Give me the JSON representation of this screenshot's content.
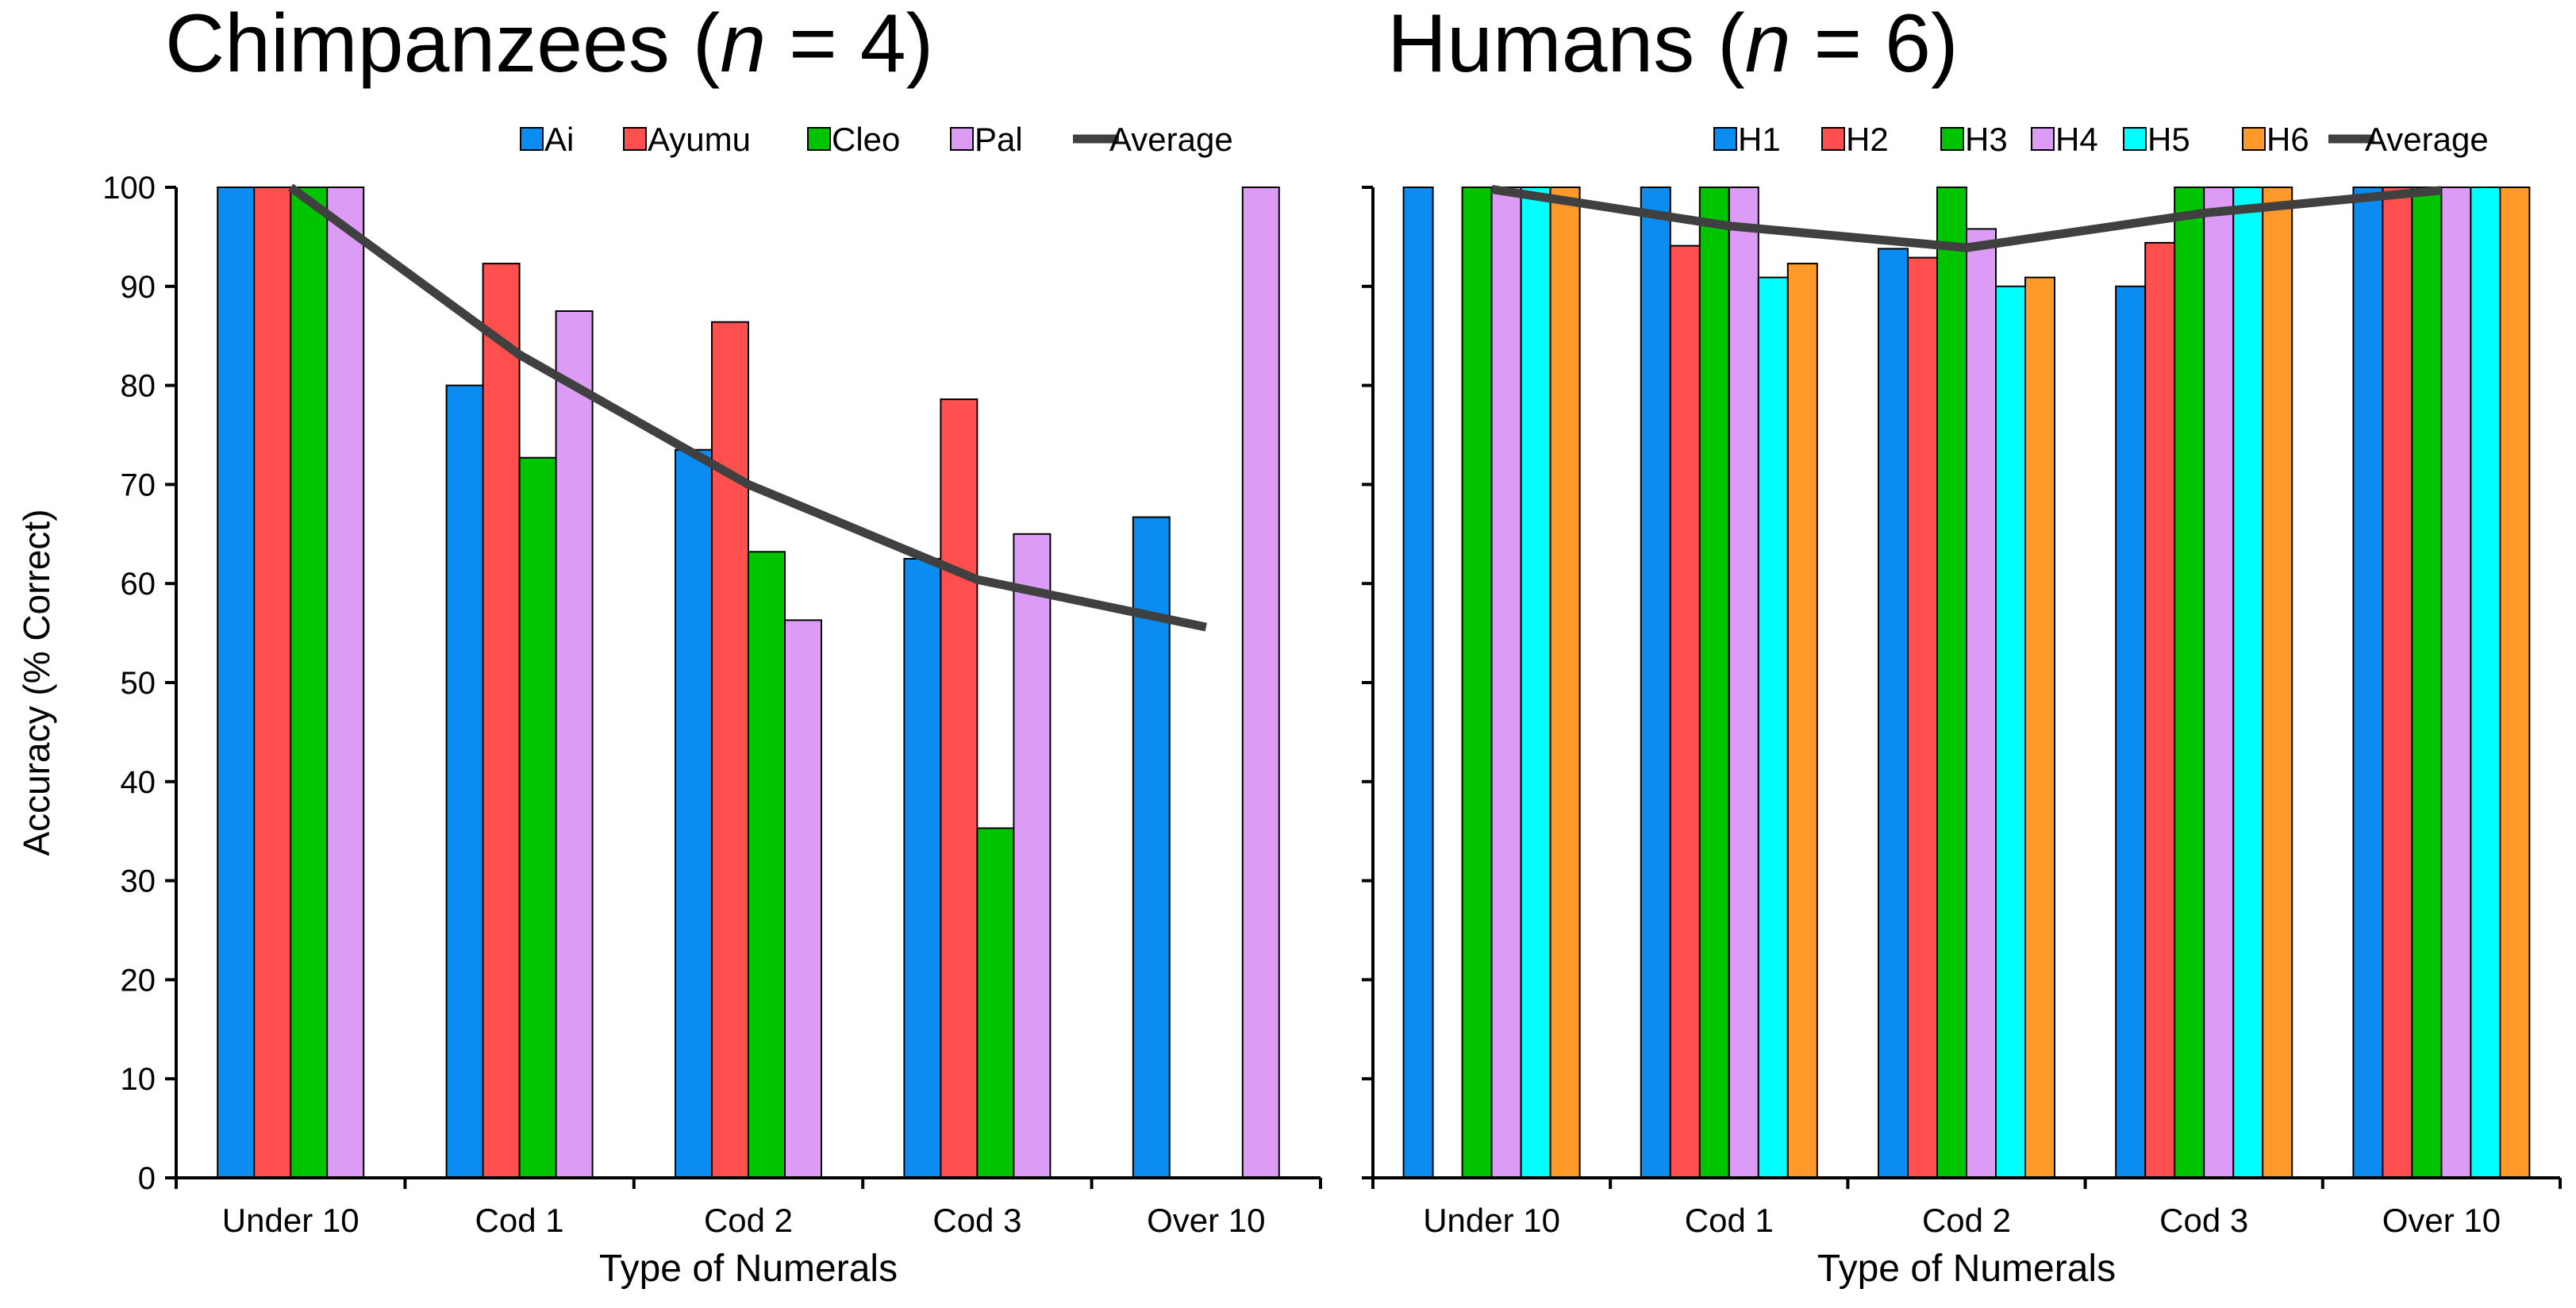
{
  "chart_data": [
    {
      "type": "bar",
      "title": "Chimpanzees (n = 4)",
      "title_parts": [
        "Chimpanzees (",
        "n",
        " = 4)"
      ],
      "xlabel": "Type of Numerals",
      "ylabel": "Accuracy (% Correct)",
      "ylim": [
        0,
        100
      ],
      "yticks": [
        0,
        10,
        20,
        30,
        40,
        50,
        60,
        70,
        80,
        90,
        100
      ],
      "categories": [
        "Under 10",
        "Cod 1",
        "Cod 2",
        "Cod 3",
        "Over 10"
      ],
      "series": [
        {
          "name": "Ai",
          "color": "#0a8cf0",
          "values": [
            100,
            80,
            73.5,
            62.5,
            66.7
          ]
        },
        {
          "name": "Ayumu",
          "color": "#ff4f4f",
          "values": [
            100,
            92.3,
            86.4,
            78.6,
            null
          ]
        },
        {
          "name": "Cleo",
          "color": "#00c400",
          "values": [
            100,
            72.7,
            63.2,
            35.3,
            null
          ]
        },
        {
          "name": "Pal",
          "color": "#dc9bf5",
          "values": [
            100,
            87.5,
            56.3,
            65,
            100
          ]
        }
      ],
      "average": {
        "name": "Average",
        "color": "#404040",
        "values": [
          100,
          83.1,
          70,
          60.4,
          55.6
        ]
      },
      "legend_position": "top"
    },
    {
      "type": "bar",
      "title": "Humans (n = 6)",
      "title_parts": [
        "Humans (",
        "n",
        " = 6)"
      ],
      "xlabel": "Type of Numerals",
      "ylabel": "",
      "ylim": [
        0,
        100
      ],
      "yticks": [
        0,
        10,
        20,
        30,
        40,
        50,
        60,
        70,
        80,
        90,
        100
      ],
      "categories": [
        "Under 10",
        "Cod 1",
        "Cod 2",
        "Cod 3",
        "Over 10"
      ],
      "series": [
        {
          "name": "H1",
          "color": "#0a8cf0",
          "values": [
            100,
            100,
            93.8,
            90,
            100
          ]
        },
        {
          "name": "H2",
          "color": "#ff4f4f",
          "values": [
            null,
            94.1,
            92.9,
            94.4,
            100
          ]
        },
        {
          "name": "H3",
          "color": "#00c400",
          "values": [
            100,
            100,
            100,
            100,
            100
          ]
        },
        {
          "name": "H4",
          "color": "#dc9bf5",
          "values": [
            100,
            100,
            95.8,
            100,
            100
          ]
        },
        {
          "name": "H5",
          "color": "#00ffff",
          "values": [
            100,
            90.9,
            90,
            100,
            100
          ]
        },
        {
          "name": "H6",
          "color": "#ff9a2a",
          "values": [
            100,
            92.3,
            90.9,
            100,
            100
          ]
        }
      ],
      "average": {
        "name": "Average",
        "color": "#404040",
        "values": [
          99.8,
          96.1,
          93.9,
          97.4,
          99.7
        ]
      },
      "legend_position": "top"
    }
  ]
}
